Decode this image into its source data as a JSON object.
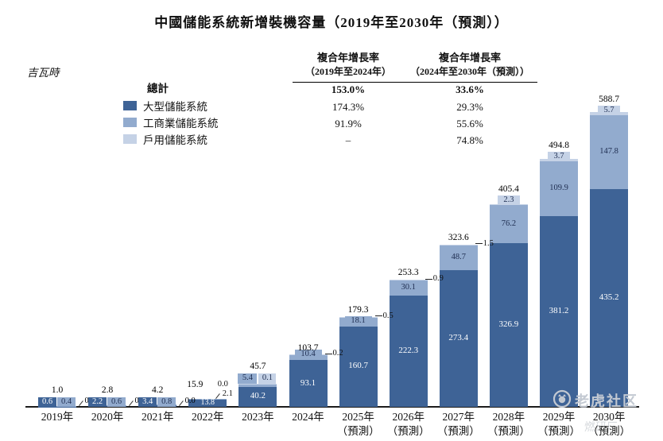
{
  "title": "中國儲能系統新增裝機容量（2019年至2030年（預測））",
  "unit_label": "吉瓦時",
  "legend": {
    "total_label": "總計",
    "items": [
      {
        "label": "大型儲能系統"
      },
      {
        "label": "工商業儲能系統"
      },
      {
        "label": "戶用儲能系統"
      }
    ]
  },
  "cagr": {
    "col1_title1": "複合年增長率",
    "col1_title2": "（2019年至2024年）",
    "col2_title1": "複合年增長率",
    "col2_title2": "（2024年至2030年（預測））",
    "col1_values": [
      "153.0%",
      "174.3%",
      "91.9%",
      "–"
    ],
    "col2_values": [
      "33.6%",
      "29.3%",
      "55.6%",
      "74.8%"
    ]
  },
  "chart_data": {
    "type": "bar",
    "stacked": true,
    "title": "中國儲能系統新增裝機容量（2019年至2030年（預測））",
    "ylabel": "吉瓦時",
    "grid": false,
    "ylim": [
      0,
      620
    ],
    "categories": [
      "2019年",
      "2020年",
      "2021年",
      "2022年",
      "2023年",
      "2024年",
      "2025年",
      "2026年",
      "2027年",
      "2028年",
      "2029年",
      "2030年"
    ],
    "forecast_sublabel": "（預測）",
    "forecast_from_index": 6,
    "series": [
      {
        "name": "大型儲能系統",
        "color": "#3E6396",
        "values": [
          0.6,
          2.2,
          3.4,
          13.8,
          40.2,
          93.1,
          160.7,
          222.3,
          273.4,
          326.9,
          381.2,
          435.2
        ]
      },
      {
        "name": "工商業儲能系統",
        "color": "#92ABCE",
        "values": [
          0.4,
          0.6,
          0.8,
          2.1,
          5.4,
          10.4,
          18.1,
          30.1,
          48.7,
          76.2,
          109.9,
          147.8
        ]
      },
      {
        "name": "戶用儲能系統",
        "color": "#C5D2E6",
        "values": [
          0.0,
          0.0,
          0.0,
          0.0,
          0.1,
          0.2,
          0.5,
          0.9,
          1.5,
          2.3,
          3.7,
          5.7
        ]
      }
    ],
    "totals": [
      1.0,
      2.8,
      4.2,
      15.9,
      45.7,
      103.7,
      179.3,
      253.3,
      323.6,
      405.4,
      494.8,
      588.7
    ],
    "label_modes": [
      "boxes",
      "boxes",
      "boxes",
      "tiny",
      "boxrow",
      "leader",
      "leader",
      "leader",
      "leader",
      "top",
      "top",
      "top"
    ]
  },
  "watermark": {
    "community": "老虎社区",
    "handle": "燃研厂"
  },
  "colors": {
    "large_scale": "#3E6396",
    "commercial_industrial": "#92ABCE",
    "residential": "#C5D2E6",
    "dark_text": "#1E2D50"
  }
}
